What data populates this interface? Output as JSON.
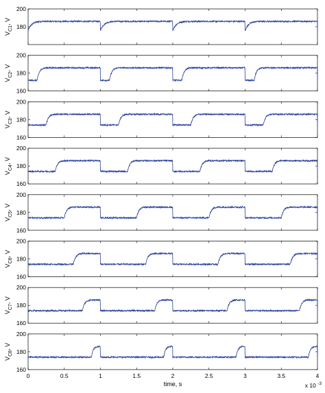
{
  "chart_data": {
    "type": "line",
    "layout": "8 vertically stacked subplots sharing the time axis",
    "xlabel": "time, s",
    "x_exponent": "x 10",
    "x_exponent_power": "-3",
    "x_unit_scale": 0.001,
    "xlim": [
      0,
      4
    ],
    "x_ticks": [
      "0",
      "0.5",
      "1",
      "1.5",
      "2",
      "2.5",
      "3",
      "3.5",
      "4"
    ],
    "ylim": [
      160,
      200
    ],
    "y_ticks": [
      "160",
      "180",
      "200"
    ],
    "grid": false,
    "line_color": "#2a3f9e",
    "noise_amplitude": 0.8,
    "period": 1,
    "low_level": 174,
    "high_level": 186,
    "panels": [
      {
        "name": "VC1",
        "ylabel_main": "V",
        "ylabel_sub": "C1",
        "ylabel_unit": ", V",
        "ylim": [
          160,
          200
        ],
        "y_ticks": [
          "180",
          "200"
        ],
        "rise_start": 0.0,
        "rise_end": 0.2,
        "fall_time": 1.0,
        "low": 176,
        "high": 186
      },
      {
        "name": "VC2",
        "ylabel_main": "V",
        "ylabel_sub": "C2",
        "ylabel_unit": ", V",
        "ylim": [
          160,
          200
        ],
        "y_ticks": [
          "160",
          "180",
          "200"
        ],
        "rise_start": 0.125,
        "rise_end": 0.25,
        "fall_time": 1.0,
        "low": 172,
        "high": 186
      },
      {
        "name": "VC3",
        "ylabel_main": "V",
        "ylabel_sub": "C3",
        "ylabel_unit": ", V",
        "ylim": [
          160,
          200
        ],
        "y_ticks": [
          "160",
          "180",
          "200"
        ],
        "rise_start": 0.25,
        "rise_end": 0.375,
        "fall_time": 1.0,
        "low": 174,
        "high": 186
      },
      {
        "name": "VC4",
        "ylabel_main": "V",
        "ylabel_sub": "C4",
        "ylabel_unit": ", V",
        "ylim": [
          160,
          200
        ],
        "y_ticks": [
          "160",
          "180",
          "200"
        ],
        "rise_start": 0.375,
        "rise_end": 0.5,
        "fall_time": 1.0,
        "low": 174,
        "high": 186
      },
      {
        "name": "VC5",
        "ylabel_main": "V",
        "ylabel_sub": "C5",
        "ylabel_unit": ", V",
        "ylim": [
          160,
          200
        ],
        "y_ticks": [
          "160",
          "180",
          "200"
        ],
        "rise_start": 0.5,
        "rise_end": 0.625,
        "fall_time": 1.0,
        "low": 174,
        "high": 186
      },
      {
        "name": "VC6",
        "ylabel_main": "V",
        "ylabel_sub": "C6",
        "ylabel_unit": ", V",
        "ylim": [
          160,
          200
        ],
        "y_ticks": [
          "160",
          "180",
          "200"
        ],
        "rise_start": 0.625,
        "rise_end": 0.75,
        "fall_time": 1.0,
        "low": 174,
        "high": 186
      },
      {
        "name": "VC7",
        "ylabel_main": "V",
        "ylabel_sub": "C7",
        "ylabel_unit": ", V",
        "ylim": [
          160,
          200
        ],
        "y_ticks": [
          "160",
          "180",
          "200"
        ],
        "rise_start": 0.75,
        "rise_end": 0.875,
        "fall_time": 1.0,
        "low": 174,
        "high": 186
      },
      {
        "name": "VC8",
        "ylabel_main": "V",
        "ylabel_sub": "C8",
        "ylabel_unit": ", V",
        "ylim": [
          160,
          200
        ],
        "y_ticks": [
          "160",
          "180",
          "200"
        ],
        "rise_start": 0.875,
        "rise_end": 0.975,
        "fall_time": 1.0,
        "low": 174,
        "high": 186
      }
    ]
  }
}
